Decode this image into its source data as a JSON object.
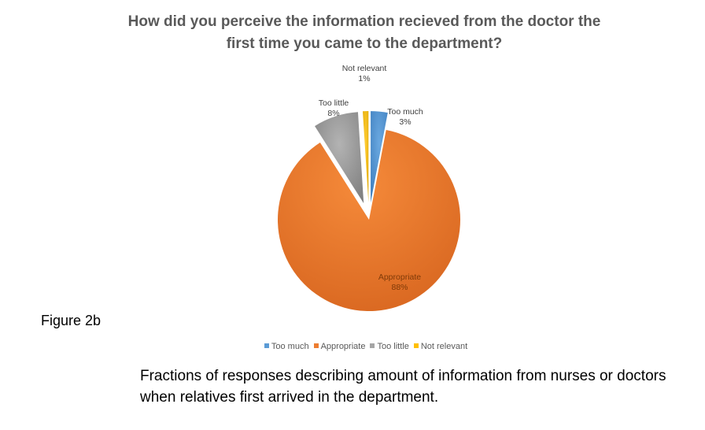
{
  "figure_label": "Figure 2b",
  "caption": "Fractions of responses describing amount of information from nurses or doctors when relatives first arrived in the department.",
  "chart_data": {
    "type": "pie",
    "title": "How did you perceive the information recieved from the doctor the first time you came to the department?",
    "slices": [
      {
        "label": "Too much",
        "value": 3,
        "display": "3%",
        "color": "#5B9BD5",
        "exploded": true
      },
      {
        "label": "Appropriate",
        "value": 88,
        "display": "88%",
        "color": "#ED7D31",
        "exploded": false
      },
      {
        "label": "Too little",
        "value": 8,
        "display": "8%",
        "color": "#A5A5A5",
        "exploded": true
      },
      {
        "label": "Not relevant",
        "value": 1,
        "display": "1%",
        "color": "#FFC000",
        "exploded": true
      }
    ],
    "legend_position": "bottom"
  }
}
